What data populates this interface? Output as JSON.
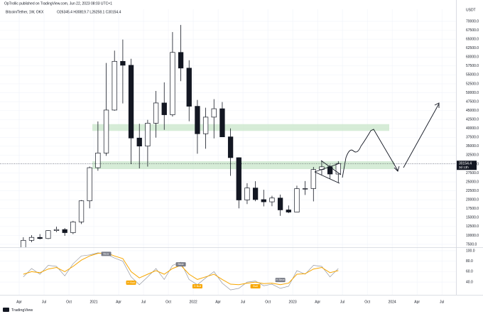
{
  "header": {
    "publisher": "OpTrollic published on TradingView.com, Jun 22, 2023 08:03 UTC+1",
    "symbol": "Bitcoin/Tether, 1W, OKX",
    "ohlc": "O26345.4 H30819.7 L26258.1 C30154.4"
  },
  "chart_data": [
    {
      "type": "candlestick",
      "y_unit": "USDT",
      "x": [
        "2020-04",
        "2020-05",
        "2020-06",
        "2020-07",
        "2020-08",
        "2020-09",
        "2020-10",
        "2020-11",
        "2020-12",
        "2021-01",
        "2021-02",
        "2021-03",
        "2021-04",
        "2021-05",
        "2021-06",
        "2021-07",
        "2021-08",
        "2021-09",
        "2021-10",
        "2021-11",
        "2021-12",
        "2022-01",
        "2022-02",
        "2022-03",
        "2022-04",
        "2022-05",
        "2022-06",
        "2022-07",
        "2022-08",
        "2022-09",
        "2022-10",
        "2022-11",
        "2022-12",
        "2023-01",
        "2023-02",
        "2023-03",
        "2023-04",
        "2023-05",
        "2023-06"
      ],
      "open": [
        6400,
        8630,
        9450,
        9140,
        11350,
        11650,
        10780,
        13800,
        19700,
        28990,
        33110,
        45140,
        58800,
        57700,
        37300,
        35040,
        41460,
        47130,
        43820,
        61300,
        56900,
        46200,
        38500,
        43160,
        45510,
        37630,
        31800,
        19940,
        23300,
        20050,
        19420,
        20490,
        17160,
        16540,
        23120,
        23140,
        28470,
        29230,
        27210
      ],
      "high": [
        9500,
        10080,
        10380,
        11450,
        12480,
        12080,
        14100,
        19900,
        29300,
        41950,
        58350,
        61800,
        64900,
        59500,
        41300,
        42400,
        50500,
        52900,
        67000,
        69000,
        59100,
        47990,
        45800,
        48200,
        47400,
        40000,
        31900,
        24650,
        25200,
        22800,
        21100,
        21450,
        18400,
        23950,
        25250,
        29200,
        31000,
        29820,
        30819.7
      ],
      "low": [
        6150,
        8120,
        8900,
        8980,
        10950,
        9880,
        10380,
        13200,
        17600,
        28130,
        32300,
        44950,
        47000,
        30000,
        28800,
        29300,
        37400,
        39600,
        43300,
        53250,
        42000,
        32900,
        34300,
        37200,
        37600,
        26700,
        17600,
        18800,
        19600,
        18150,
        18200,
        15500,
        16250,
        16500,
        21350,
        19550,
        26950,
        25800,
        24800
      ],
      "close": [
        8630,
        9450,
        9140,
        11350,
        11650,
        10780,
        13800,
        19700,
        28990,
        33110,
        45140,
        58800,
        57700,
        37300,
        35040,
        41460,
        47130,
        43820,
        61300,
        56900,
        46200,
        38500,
        43160,
        45510,
        37630,
        31800,
        19940,
        23300,
        20050,
        19420,
        20490,
        17160,
        16540,
        23120,
        23140,
        28470,
        29230,
        27210,
        30154.4
      ],
      "up_color": "#ffffff",
      "down_color": "#131722",
      "zones": [
        [
          39300,
          41200
        ],
        [
          28600,
          30800
        ]
      ],
      "zone_color": "#c8e6c9",
      "ylim": [
        6900,
        73000
      ],
      "yticks": [
        {
          "value": 70000,
          "label": "70000.0"
        },
        {
          "value": 67500,
          "label": "67500.0"
        },
        {
          "value": 65000,
          "label": "65000.0"
        },
        {
          "value": 62500,
          "label": "62500.0"
        },
        {
          "value": 60000,
          "label": "60000.0"
        },
        {
          "value": 57500,
          "label": "57500.0"
        },
        {
          "value": 55000,
          "label": "55000.0"
        },
        {
          "value": 52500,
          "label": "52500.0"
        },
        {
          "value": 50000,
          "label": "50000.0"
        },
        {
          "value": 47500,
          "label": "47500.0"
        },
        {
          "value": 45000,
          "label": "45000.0"
        },
        {
          "value": 42500,
          "label": "42500.0"
        },
        {
          "value": 40000,
          "label": "40000.0"
        },
        {
          "value": 37500,
          "label": "37500.0"
        },
        {
          "value": 35000,
          "label": "35000.0"
        },
        {
          "value": 32500,
          "label": "32500.0"
        },
        {
          "value": 30000,
          "label": "30000.0"
        },
        {
          "value": 27500,
          "label": "27500.0"
        },
        {
          "value": 25000,
          "label": "25000.0"
        },
        {
          "value": 22500,
          "label": "22500.0"
        },
        {
          "value": 20000,
          "label": "20000.0"
        },
        {
          "value": 17500,
          "label": "17500.0"
        },
        {
          "value": 15000,
          "label": "15000.0"
        },
        {
          "value": 12500,
          "label": "12500.0"
        },
        {
          "value": 10000,
          "label": "10000.0"
        },
        {
          "value": 7500,
          "label": "7500.0"
        }
      ],
      "last_price": {
        "value": 30154.4,
        "label": "30154.4"
      },
      "countdown": "3d 13h",
      "xticks": [
        {
          "value": "2020-04",
          "label": "Apr"
        },
        {
          "value": "2020-07",
          "label": "Jul"
        },
        {
          "value": "2020-10",
          "label": "Oct"
        },
        {
          "value": "2021-01",
          "label": "2021"
        },
        {
          "value": "2021-04",
          "label": "Apr"
        },
        {
          "value": "2021-07",
          "label": "Jul"
        },
        {
          "value": "2021-10",
          "label": "Oct"
        },
        {
          "value": "2022-01",
          "label": "2022"
        },
        {
          "value": "2022-04",
          "label": "Apr"
        },
        {
          "value": "2022-07",
          "label": "Jul"
        },
        {
          "value": "2022-10",
          "label": "Oct"
        },
        {
          "value": "2023-01",
          "label": "2023"
        },
        {
          "value": "2023-04",
          "label": "Apr"
        },
        {
          "value": "2023-07",
          "label": "Jul"
        },
        {
          "value": "2023-10",
          "label": "Oct"
        },
        {
          "value": "2024-01",
          "label": "2024"
        },
        {
          "value": "2024-04",
          "label": "Apr"
        },
        {
          "value": "2024-07",
          "label": "Jul"
        }
      ]
    },
    {
      "type": "line",
      "x": [
        "2020-04",
        "2020-05",
        "2020-06",
        "2020-07",
        "2020-08",
        "2020-09",
        "2020-10",
        "2020-11",
        "2020-12",
        "2021-01",
        "2021-02",
        "2021-03",
        "2021-04",
        "2021-05",
        "2021-06",
        "2021-07",
        "2021-08",
        "2021-09",
        "2021-10",
        "2021-11",
        "2021-12",
        "2022-01",
        "2022-02",
        "2022-03",
        "2022-04",
        "2022-05",
        "2022-06",
        "2022-07",
        "2022-08",
        "2022-09",
        "2022-10",
        "2022-11",
        "2022-12",
        "2023-01",
        "2023-02",
        "2023-03",
        "2023-04",
        "2023-05",
        "2023-06"
      ],
      "series": [
        {
          "color": "#9598a1",
          "values": [
            50,
            66,
            55,
            72,
            70,
            52,
            75,
            90,
            92,
            96,
            94,
            86,
            80,
            50,
            35,
            50,
            66,
            45,
            72,
            78,
            45,
            35,
            48,
            60,
            38,
            25,
            28,
            40,
            42,
            33,
            36,
            28,
            32,
            62,
            55,
            72,
            70,
            50,
            66
          ]
        },
        {
          "color": "#f7a600",
          "values": [
            55,
            60,
            58,
            65,
            68,
            60,
            70,
            82,
            90,
            95,
            96,
            90,
            85,
            60,
            48,
            55,
            62,
            55,
            66,
            72,
            55,
            45,
            50,
            55,
            45,
            36,
            35,
            38,
            40,
            37,
            38,
            35,
            38,
            55,
            56,
            65,
            68,
            58,
            62
          ]
        }
      ],
      "annotations": [
        {
          "text": "Bear",
          "x": "2021-02",
          "y": 94
        },
        {
          "text": "Bear",
          "x": "2021-11",
          "y": 74
        },
        {
          "text": "H Bull",
          "x": "2021-05",
          "y": 39
        },
        {
          "text": "H Bull",
          "x": "2022-01",
          "y": 32
        },
        {
          "text": "Bull",
          "x": "2022-08",
          "y": 32
        },
        {
          "text": "H Bear",
          "x": "2022-11",
          "y": 44
        }
      ],
      "ylim": [
        17,
        104
      ],
      "yticks": [
        {
          "value": 100,
          "label": "100.0"
        },
        {
          "value": 80,
          "label": "80.0"
        },
        {
          "value": 60,
          "label": "60.0"
        },
        {
          "value": 40,
          "label": "40.0"
        }
      ]
    }
  ],
  "footer": {
    "brand": "TradingView"
  }
}
